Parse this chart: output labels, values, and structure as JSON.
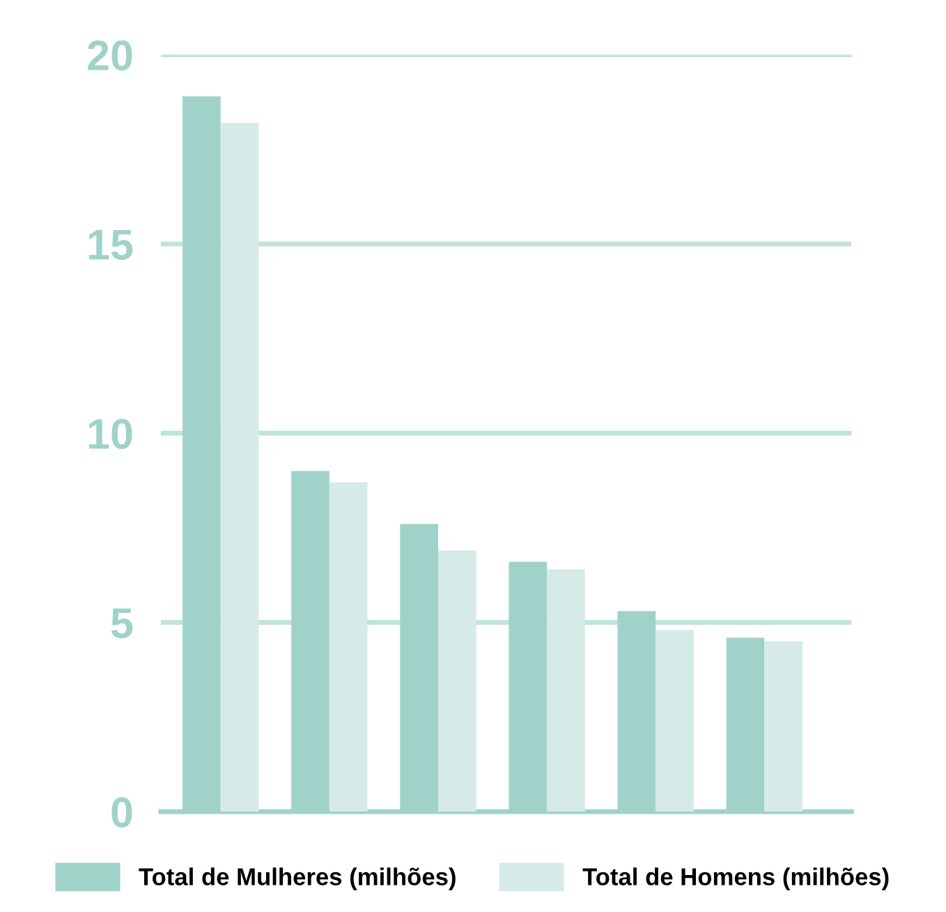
{
  "chart_data": {
    "type": "bar",
    "categories": [
      null,
      null,
      null,
      null,
      null,
      null
    ],
    "series": [
      {
        "name": "Total de Mulheres (milhões)",
        "color": "#a0d2c9",
        "values": [
          18.9,
          9.0,
          7.6,
          6.6,
          5.3,
          4.6
        ]
      },
      {
        "name": "Total de Homens (milhões)",
        "color": "#d6ebe7",
        "values": [
          18.2,
          8.7,
          6.9,
          6.4,
          4.8,
          4.5
        ]
      }
    ],
    "ylim": [
      0,
      20
    ],
    "yticks": [
      0,
      5,
      10,
      15,
      20
    ],
    "grid": "y",
    "legend": "bottom"
  }
}
